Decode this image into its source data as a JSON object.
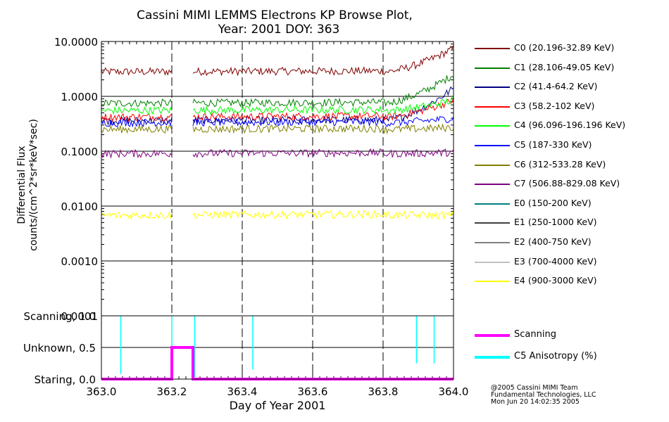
{
  "chart_data": [
    {
      "type": "line",
      "title": "Cassini MIMI LEMMS Electrons KP Browse Plot,",
      "subtitle": "Year: 2001 DOY: 363",
      "ylabel": "Differential Flux",
      "ylabel2": "counts/(cm^2*sr*keV*sec)",
      "yscale": "log",
      "ylim": [
        0.0001,
        10
      ],
      "ytick_labels": [
        "10.0000",
        "1.0000",
        "0.1000",
        "0.0100",
        "0.0010",
        "0.0001"
      ],
      "xlim": [
        363.0,
        364.0
      ],
      "data_gap": [
        363.2,
        363.26
      ],
      "series": [
        {
          "name": "C0 (20.196-32.89 KeV)",
          "color": "#800000",
          "start": 2.8,
          "end": 7.5
        },
        {
          "name": "C1 (28.106-49.05 KeV)",
          "color": "#008000",
          "start": 0.75,
          "end": 2.5
        },
        {
          "name": "C2 (41.4-64.2 KeV)",
          "color": "#000080",
          "start": 0.36,
          "end": 1.4
        },
        {
          "name": "C3 (58.2-102 KeV)",
          "color": "#ff0000",
          "start": 0.42,
          "end": 0.85
        },
        {
          "name": "C4 (96.096-196.196 KeV)",
          "color": "#00ff00",
          "start": 0.55,
          "end": 0.85
        },
        {
          "name": "C5 (187-330 KeV)",
          "color": "#0000ff",
          "start": 0.33,
          "end": 0.4
        },
        {
          "name": "C6 (312-533.28 KeV)",
          "color": "#808000",
          "start": 0.25,
          "end": 0.27
        },
        {
          "name": "C7 (506.88-829.08 KeV)",
          "color": "#800080",
          "start": 0.09,
          "end": 0.095
        },
        {
          "name": "E0 (150-200 KeV)",
          "color": "#008080",
          "start": null,
          "end": null
        },
        {
          "name": "E1 (250-1000 KeV)",
          "color": "#404040",
          "start": null,
          "end": null
        },
        {
          "name": "E2 (400-750 KeV)",
          "color": "#808080",
          "start": null,
          "end": null
        },
        {
          "name": "E3 (700-4000 KeV)",
          "color": "#c0c0c0",
          "start": null,
          "end": null
        },
        {
          "name": "E4 (900-3000 KeV)",
          "color": "#ffff00",
          "start": 0.0068,
          "end": 0.0068
        }
      ]
    },
    {
      "type": "line",
      "xlabel": "Day of Year 2001",
      "ytick_labels": [
        "Scanning, 1.0",
        "Unknown, 0.5",
        "Staring, 0.0"
      ],
      "ylim": [
        0,
        1.0
      ],
      "xlim": [
        363.0,
        364.0
      ],
      "xtick_labels": [
        "363.0",
        "363.2",
        "363.4",
        "363.6",
        "363.8",
        "364.0"
      ],
      "series": [
        {
          "name": "Scanning",
          "color": "#ff00ff",
          "x": [
            363.0,
            363.2,
            363.2,
            363.26,
            363.26,
            364.0
          ],
          "y": [
            0,
            0,
            0.5,
            0.5,
            0,
            0
          ]
        },
        {
          "name": "C5 Anisotropy (%)",
          "color": "#00ffff",
          "base": 1.0,
          "dips": [
            [
              363.055,
              0.08
            ],
            [
              363.2,
              0.05
            ],
            [
              363.265,
              0.03
            ],
            [
              363.43,
              0.15
            ],
            [
              363.895,
              0.25
            ],
            [
              363.945,
              0.25
            ]
          ]
        }
      ]
    }
  ],
  "credits": {
    "line1": "@2005 Cassini MIMI Team",
    "line2": "Fundamental Technologies, LLC",
    "line3": "Mon Jun 20 14:02:35 2005"
  }
}
